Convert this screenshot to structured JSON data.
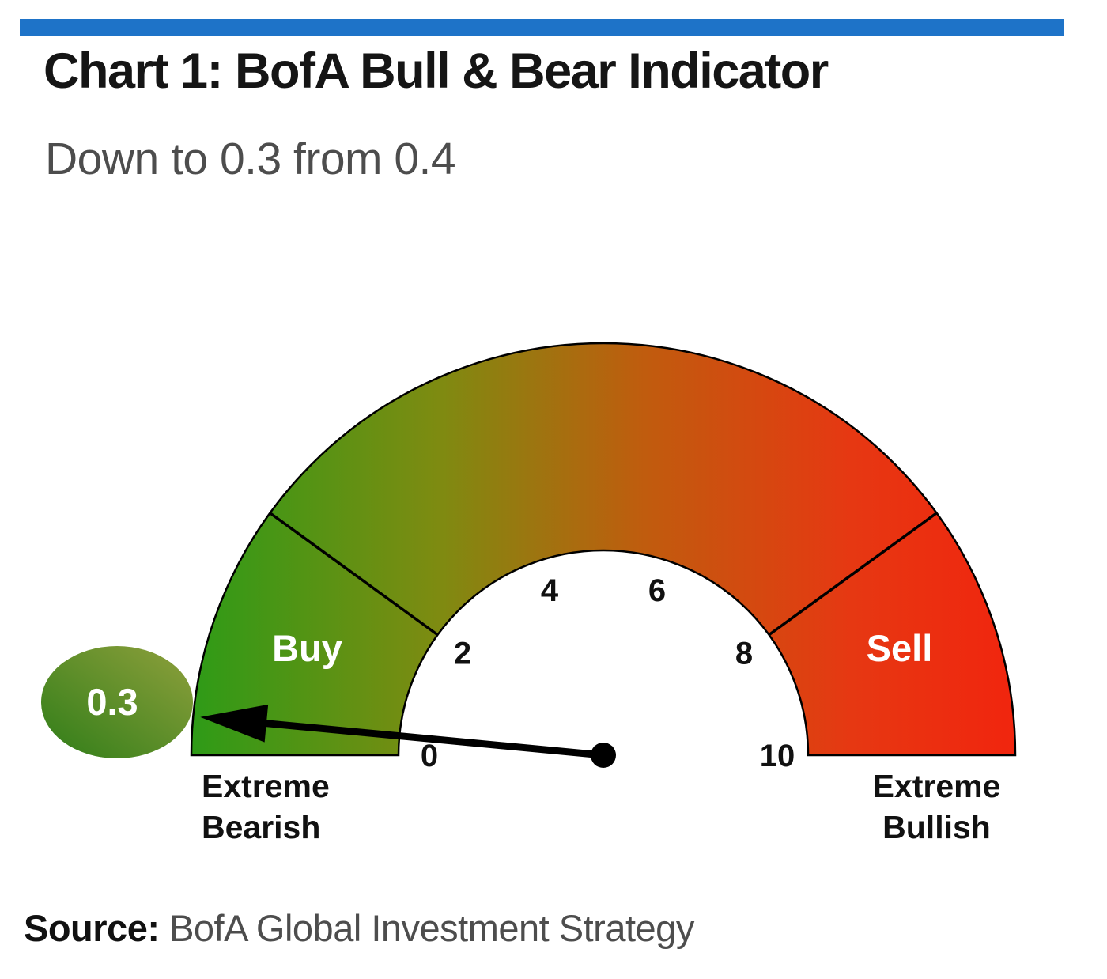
{
  "header": {
    "title": "Chart 1: BofA Bull & Bear Indicator",
    "subtitle": "Down to 0.3 from 0.4"
  },
  "footer": {
    "source_label": "Source:",
    "source_text": "BofA Global Investment Strategy"
  },
  "accent": {
    "top_bar_color": "#1e73c8"
  },
  "chart_data": {
    "type": "gauge",
    "title": "Chart 1: BofA Bull & Bear Indicator",
    "subtitle": "Down to 0.3 from 0.4",
    "min": 0,
    "max": 10,
    "value": 0.3,
    "previous_value": 0.4,
    "value_label": "0.3",
    "ticks": [
      0,
      2,
      4,
      6,
      8,
      10
    ],
    "zone_boundaries": [
      2,
      8
    ],
    "zones": [
      {
        "label": "Buy",
        "center_value": 1.1,
        "color": "#2e9b17"
      },
      {
        "label": "Sell",
        "center_value": 8.9,
        "color": "#f1250e"
      }
    ],
    "end_labels": {
      "left": [
        "Extreme",
        "Bearish"
      ],
      "right": [
        "Extreme",
        "Bullish"
      ]
    },
    "gradient_stops": [
      {
        "offset": 0,
        "color": "#2e9b17"
      },
      {
        "offset": 0.3,
        "color": "#7e8b11"
      },
      {
        "offset": 0.55,
        "color": "#c05c0e"
      },
      {
        "offset": 0.8,
        "color": "#e63812"
      },
      {
        "offset": 1,
        "color": "#f1250e"
      }
    ],
    "badge": {
      "label": "0.3",
      "color_light": "#8fa03c",
      "color_dark": "#2f7d18"
    }
  }
}
